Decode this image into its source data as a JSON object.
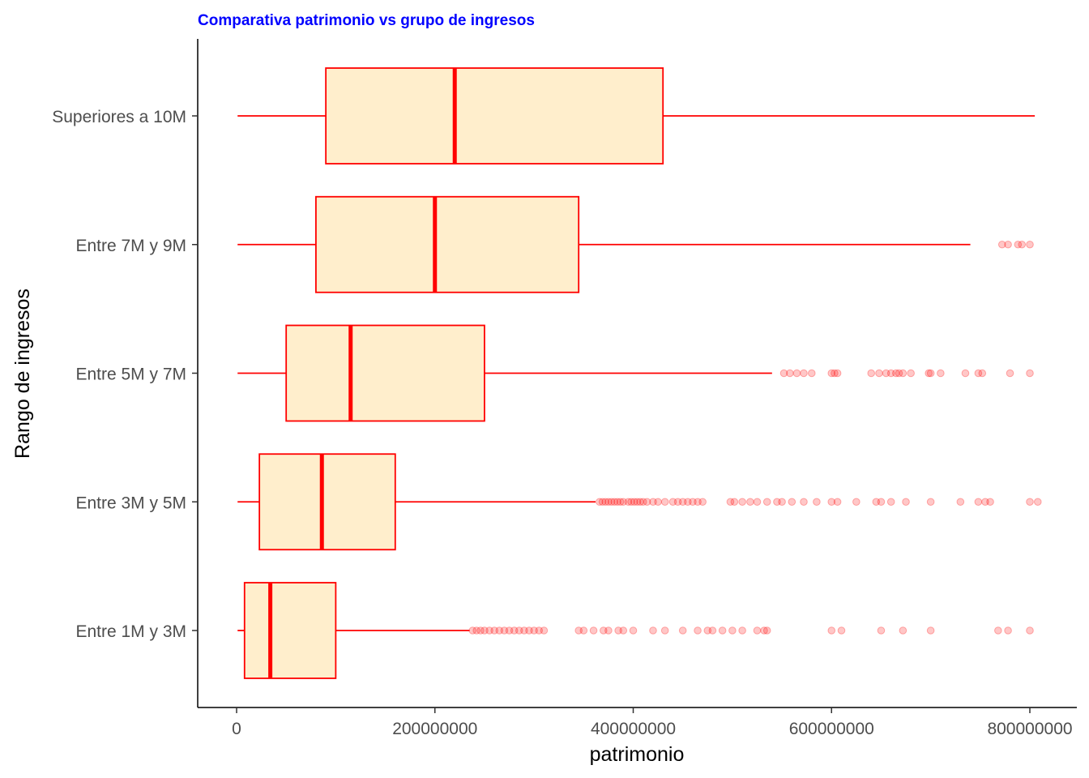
{
  "chart_data": {
    "type": "box",
    "title": "Comparativa patrimonio vs grupo de ingresos",
    "xlabel": "patrimonio",
    "ylabel": "Rango de ingresos",
    "xlim": [
      -40000000,
      845000000
    ],
    "x_ticks": [
      0,
      200000000,
      400000000,
      600000000,
      800000000
    ],
    "x_tick_labels": [
      "0",
      "200000000",
      "400000000",
      "600000000",
      "800000000"
    ],
    "orientation": "horizontal",
    "grid": false,
    "colors": {
      "title": "#0000ff",
      "box_fill": "#ffeecc",
      "box_stroke": "#ff0000",
      "outlier": "#ff0000",
      "axis": "#000000"
    },
    "categories": [
      "Superiores a 10M",
      "Entre 7M y 9M",
      "Entre 5M y 7M",
      "Entre 3M y  5M",
      "Entre 1M y 3M"
    ],
    "boxes": [
      {
        "category": "Superiores a 10M",
        "whisker_low": 1000000,
        "q1": 90000000,
        "median": 220000000,
        "q3": 430000000,
        "whisker_high": 805000000,
        "outliers": []
      },
      {
        "category": "Entre 7M y 9M",
        "whisker_low": 1000000,
        "q1": 80000000,
        "median": 200000000,
        "q3": 345000000,
        "whisker_high": 740000000,
        "outliers": [
          772000000,
          778000000,
          788000000,
          792000000,
          800000000
        ]
      },
      {
        "category": "Entre 5M y 7M",
        "whisker_low": 1000000,
        "q1": 50000000,
        "median": 115000000,
        "q3": 250000000,
        "whisker_high": 540000000,
        "outliers": [
          552000000,
          558000000,
          565000000,
          572000000,
          580000000,
          600000000,
          603000000,
          606000000,
          640000000,
          648000000,
          655000000,
          660000000,
          665000000,
          668000000,
          672000000,
          680000000,
          698000000,
          700000000,
          710000000,
          735000000,
          748000000,
          752000000,
          780000000,
          800000000
        ]
      },
      {
        "category": "Entre 3M y  5M",
        "whisker_low": 1000000,
        "q1": 23000000,
        "median": 86000000,
        "q3": 160000000,
        "whisker_high": 362000000,
        "outliers": [
          366000000,
          369000000,
          372000000,
          375000000,
          378000000,
          381000000,
          384000000,
          387000000,
          390000000,
          395000000,
          398000000,
          401000000,
          404000000,
          407000000,
          410000000,
          414000000,
          420000000,
          425000000,
          432000000,
          440000000,
          445000000,
          450000000,
          455000000,
          460000000,
          465000000,
          470000000,
          498000000,
          502000000,
          510000000,
          518000000,
          525000000,
          535000000,
          545000000,
          550000000,
          560000000,
          572000000,
          585000000,
          600000000,
          606000000,
          625000000,
          645000000,
          650000000,
          660000000,
          675000000,
          700000000,
          730000000,
          748000000,
          755000000,
          760000000,
          800000000,
          808000000
        ]
      },
      {
        "category": "Entre 1M y 3M",
        "whisker_low": 1000000,
        "q1": 8000000,
        "median": 34000000,
        "q3": 100000000,
        "whisker_high": 235000000,
        "outliers": [
          238000000,
          242000000,
          246000000,
          250000000,
          255000000,
          260000000,
          265000000,
          270000000,
          275000000,
          280000000,
          285000000,
          290000000,
          295000000,
          300000000,
          305000000,
          310000000,
          345000000,
          350000000,
          360000000,
          370000000,
          375000000,
          385000000,
          390000000,
          400000000,
          420000000,
          432000000,
          450000000,
          465000000,
          475000000,
          480000000,
          490000000,
          500000000,
          510000000,
          525000000,
          532000000,
          535000000,
          600000000,
          610000000,
          650000000,
          672000000,
          700000000,
          768000000,
          778000000,
          800000000
        ]
      }
    ]
  }
}
